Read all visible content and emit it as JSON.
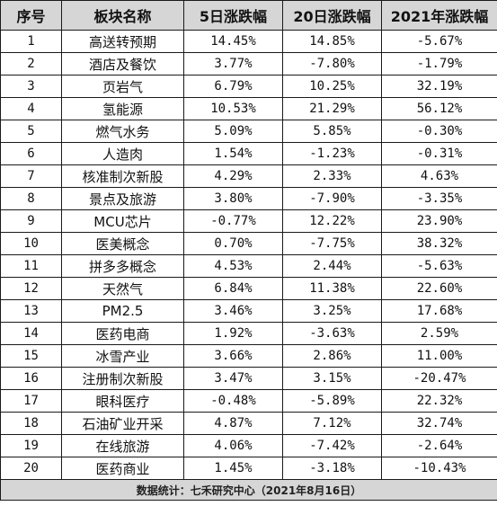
{
  "table": {
    "headers": [
      "序号",
      "板块名称",
      "5日涨跌幅",
      "20日涨跌幅",
      "2021年涨跌幅"
    ],
    "rows": [
      [
        "1",
        "高送转预期",
        "14.45%",
        "14.85%",
        "-5.67%"
      ],
      [
        "2",
        "酒店及餐饮",
        "3.77%",
        "-7.80%",
        "-1.79%"
      ],
      [
        "3",
        "页岩气",
        "6.79%",
        "10.25%",
        "32.19%"
      ],
      [
        "4",
        "氢能源",
        "10.53%",
        "21.29%",
        "56.12%"
      ],
      [
        "5",
        "燃气水务",
        "5.09%",
        "5.85%",
        "-0.30%"
      ],
      [
        "6",
        "人造肉",
        "1.54%",
        "-1.23%",
        "-0.31%"
      ],
      [
        "7",
        "核准制次新股",
        "4.29%",
        "2.33%",
        "4.63%"
      ],
      [
        "8",
        "景点及旅游",
        "3.80%",
        "-7.90%",
        "-3.35%"
      ],
      [
        "9",
        "MCU芯片",
        "-0.77%",
        "12.22%",
        "23.90%"
      ],
      [
        "10",
        "医美概念",
        "0.70%",
        "-7.75%",
        "38.32%"
      ],
      [
        "11",
        "拼多多概念",
        "4.53%",
        "2.44%",
        "-5.63%"
      ],
      [
        "12",
        "天然气",
        "6.84%",
        "11.38%",
        "22.60%"
      ],
      [
        "13",
        "PM2.5",
        "3.46%",
        "3.25%",
        "17.68%"
      ],
      [
        "14",
        "医药电商",
        "1.92%",
        "-3.63%",
        "2.59%"
      ],
      [
        "15",
        "冰雪产业",
        "3.66%",
        "2.86%",
        "11.00%"
      ],
      [
        "16",
        "注册制次新股",
        "3.47%",
        "3.15%",
        "-20.47%"
      ],
      [
        "17",
        "眼科医疗",
        "-0.48%",
        "-5.89%",
        "22.32%"
      ],
      [
        "18",
        "石油矿业开采",
        "4.87%",
        "7.12%",
        "32.74%"
      ],
      [
        "19",
        "在线旅游",
        "4.06%",
        "-7.42%",
        "-2.64%"
      ],
      [
        "20",
        "医药商业",
        "1.45%",
        "-3.18%",
        "-10.43%"
      ]
    ],
    "footer": "数据统计：七禾研究中心（2021年8月16日）"
  }
}
